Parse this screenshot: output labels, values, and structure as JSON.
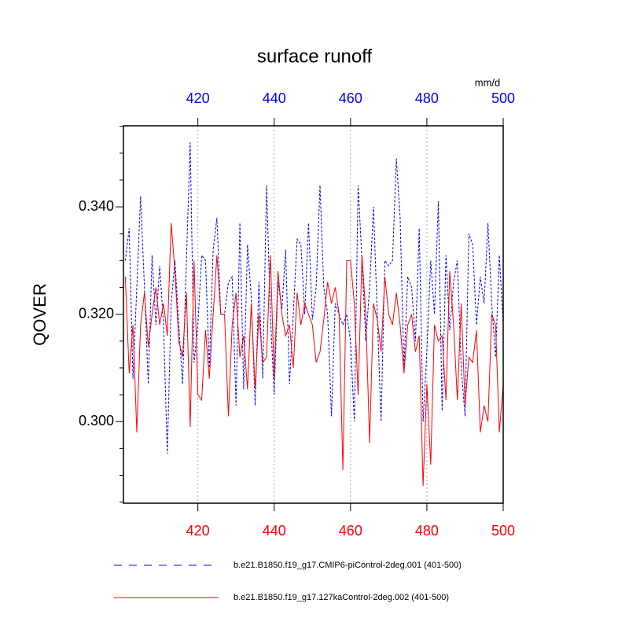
{
  "chart_data": {
    "type": "line",
    "title": "surface runoff",
    "y_label": "QOVER",
    "top_axis_units": "mm/d",
    "x": [
      401,
      402,
      403,
      404,
      405,
      406,
      407,
      408,
      409,
      410,
      411,
      412,
      413,
      414,
      415,
      416,
      417,
      418,
      419,
      420,
      421,
      422,
      423,
      424,
      425,
      426,
      427,
      428,
      429,
      430,
      431,
      432,
      433,
      434,
      435,
      436,
      437,
      438,
      439,
      440,
      441,
      442,
      443,
      444,
      445,
      446,
      447,
      448,
      449,
      450,
      451,
      452,
      453,
      454,
      455,
      456,
      457,
      458,
      459,
      460,
      461,
      462,
      463,
      464,
      465,
      466,
      467,
      468,
      469,
      470,
      471,
      472,
      473,
      474,
      475,
      476,
      477,
      478,
      479,
      480,
      481,
      482,
      483,
      484,
      485,
      486,
      487,
      488,
      489,
      490,
      491,
      492,
      493,
      494,
      495,
      496,
      497,
      498,
      499,
      500
    ],
    "series": [
      {
        "name": "b.e21.B1850.f19_g17.CMIP6-piControl-2deg.001 (401-500)",
        "color": "#0000ff",
        "dash": true,
        "values": [
          0.33,
          0.336,
          0.308,
          0.325,
          0.342,
          0.325,
          0.307,
          0.331,
          0.318,
          0.329,
          0.318,
          0.294,
          0.322,
          0.33,
          0.318,
          0.307,
          0.33,
          0.352,
          0.311,
          0.318,
          0.331,
          0.33,
          0.31,
          0.332,
          0.338,
          0.32,
          0.32,
          0.326,
          0.327,
          0.303,
          0.337,
          0.306,
          0.333,
          0.323,
          0.303,
          0.326,
          0.308,
          0.344,
          0.32,
          0.305,
          0.326,
          0.321,
          0.332,
          0.307,
          0.32,
          0.334,
          0.333,
          0.32,
          0.337,
          0.319,
          0.325,
          0.344,
          0.325,
          0.32,
          0.301,
          0.322,
          0.32,
          0.318,
          0.32,
          0.315,
          0.3,
          0.344,
          0.33,
          0.315,
          0.325,
          0.34,
          0.32,
          0.3,
          0.33,
          0.329,
          0.33,
          0.349,
          0.338,
          0.31,
          0.327,
          0.325,
          0.315,
          0.336,
          0.3,
          0.313,
          0.33,
          0.32,
          0.341,
          0.302,
          0.331,
          0.317,
          0.326,
          0.33,
          0.31,
          0.301,
          0.335,
          0.333,
          0.318,
          0.327,
          0.322,
          0.337,
          0.322,
          0.312,
          0.331,
          0.318
        ]
      },
      {
        "name": "b.e21.B1850.f19_g17.127kaControl-2deg.002 (401-500)",
        "color": "#ff0000",
        "dash": false,
        "values": [
          0.327,
          0.309,
          0.318,
          0.298,
          0.318,
          0.324,
          0.314,
          0.32,
          0.325,
          0.318,
          0.322,
          0.316,
          0.337,
          0.328,
          0.315,
          0.312,
          0.324,
          0.299,
          0.33,
          0.305,
          0.304,
          0.317,
          0.308,
          0.32,
          0.331,
          0.32,
          0.32,
          0.301,
          0.318,
          0.324,
          0.312,
          0.316,
          0.306,
          0.322,
          0.306,
          0.32,
          0.311,
          0.312,
          0.331,
          0.308,
          0.328,
          0.32,
          0.316,
          0.318,
          0.31,
          0.324,
          0.318,
          0.322,
          0.32,
          0.318,
          0.311,
          0.313,
          0.319,
          0.326,
          0.322,
          0.325,
          0.32,
          0.291,
          0.33,
          0.33,
          0.322,
          0.305,
          0.331,
          0.32,
          0.296,
          0.322,
          0.319,
          0.313,
          0.327,
          0.32,
          0.318,
          0.324,
          0.318,
          0.309,
          0.318,
          0.32,
          0.313,
          0.316,
          0.288,
          0.307,
          0.292,
          0.318,
          0.315,
          0.316,
          0.304,
          0.328,
          0.318,
          0.304,
          0.322,
          0.303,
          0.312,
          0.311,
          0.317,
          0.298,
          0.303,
          0.3,
          0.32,
          0.318,
          0.298,
          0.307
        ]
      }
    ],
    "xlim": [
      400.5,
      500
    ],
    "xticks": [
      420,
      440,
      460,
      480,
      500
    ],
    "top_axis_color": "#0000ff",
    "bottom_axis_color": "#ff0000",
    "ylim": [
      0.2848,
      0.3551
    ],
    "yticks": [
      {
        "value": 0.3,
        "label": "0.300"
      },
      {
        "value": 0.32,
        "label": "0.320"
      },
      {
        "value": 0.34,
        "label": "0.340"
      }
    ],
    "y_minor_ticks": [
      0.285,
      0.29,
      0.295,
      0.305,
      0.31,
      0.315,
      0.325,
      0.33,
      0.335,
      0.345,
      0.35,
      0.355
    ],
    "x_grid": true
  }
}
